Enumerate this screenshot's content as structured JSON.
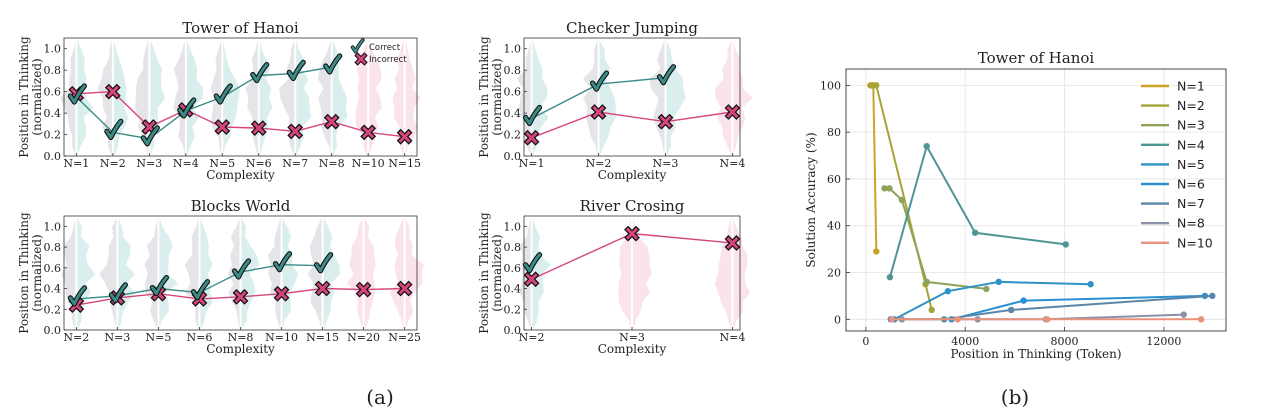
{
  "colors": {
    "correct": "#3b8c88",
    "incorrect": "#d6467e",
    "correct_fill": "#9fd3cf",
    "incorrect_fill": "#f4b6cc",
    "gray_fill": "#b9b9c4"
  },
  "figure": {
    "caption_a": "(a)",
    "caption_b": "(b)"
  },
  "panel_a": {
    "legend": {
      "correct": "Correct",
      "incorrect": "Incorrect"
    },
    "yticks": [
      "0.0",
      "0.2",
      "0.4",
      "0.6",
      "0.8",
      "1.0"
    ]
  },
  "chart_data": [
    {
      "type": "line",
      "title": "Tower of Hanoi",
      "xlabel": "Complexity",
      "ylabel": "Position in Thinking (normalized)",
      "ylim": [
        0,
        1.1
      ],
      "categories": [
        "N=1",
        "N=2",
        "N=3",
        "N=4",
        "N=5",
        "N=6",
        "N=7",
        "N=8",
        "N=10",
        "N=15"
      ],
      "series": [
        {
          "name": "Correct",
          "values": [
            0.55,
            0.22,
            0.16,
            0.42,
            0.55,
            0.75,
            0.77,
            0.83,
            null,
            null
          ]
        },
        {
          "name": "Incorrect",
          "values": [
            0.58,
            0.6,
            0.27,
            0.43,
            0.27,
            0.26,
            0.23,
            0.32,
            0.22,
            0.18
          ]
        }
      ],
      "legend": "top-right"
    },
    {
      "type": "line",
      "title": "Checker Jumping",
      "xlabel": "Complexity",
      "ylabel": "Position in Thinking (normalized)",
      "ylim": [
        0,
        1.1
      ],
      "categories": [
        "N=1",
        "N=2",
        "N=3",
        "N=4"
      ],
      "series": [
        {
          "name": "Correct",
          "values": [
            0.35,
            0.67,
            0.73,
            null
          ]
        },
        {
          "name": "Incorrect",
          "values": [
            0.17,
            0.41,
            0.32,
            0.41
          ]
        }
      ]
    },
    {
      "type": "line",
      "title": "Blocks World",
      "xlabel": "Complexity",
      "ylabel": "Position in Thinking (normalized)",
      "ylim": [
        0,
        1.1
      ],
      "categories": [
        "N=2",
        "N=3",
        "N=5",
        "N=6",
        "N=8",
        "N=10",
        "N=15",
        "N=20",
        "N=25"
      ],
      "series": [
        {
          "name": "Correct",
          "values": [
            0.3,
            0.33,
            0.4,
            0.36,
            0.56,
            0.63,
            0.62,
            null,
            null
          ]
        },
        {
          "name": "Incorrect",
          "values": [
            0.24,
            0.31,
            0.35,
            0.3,
            0.32,
            0.35,
            0.4,
            0.39,
            0.4
          ]
        }
      ]
    },
    {
      "type": "line",
      "title": "River Crosing",
      "xlabel": "Complexity",
      "ylabel": "Position in Thinking (normalized)",
      "ylim": [
        0,
        1.1
      ],
      "categories": [
        "N=2",
        "N=3",
        "N=4"
      ],
      "series": [
        {
          "name": "Correct",
          "values": [
            0.62,
            null,
            null
          ]
        },
        {
          "name": "Incorrect",
          "values": [
            0.49,
            0.93,
            0.84
          ]
        }
      ]
    },
    {
      "type": "line",
      "title": "Tower of Hanoi",
      "xlabel": "Position in Thinking (Token)",
      "ylabel": "Solution Accuracy (%)",
      "xlim": [
        -800,
        14500
      ],
      "ylim": [
        -5,
        107
      ],
      "xticks": [
        0,
        4000,
        8000,
        12000
      ],
      "yticks": [
        0,
        20,
        40,
        60,
        80,
        100
      ],
      "grid": true,
      "legend": "right",
      "series": [
        {
          "name": "N=1",
          "color": "#c9a227",
          "points": [
            [
              180,
              100
            ],
            [
              300,
              100
            ],
            [
              420,
              29
            ]
          ]
        },
        {
          "name": "N=2",
          "color": "#a7a437",
          "points": [
            [
              230,
              100
            ],
            [
              420,
              100
            ],
            [
              2400,
              15
            ],
            [
              2650,
              4
            ]
          ]
        },
        {
          "name": "N=3",
          "color": "#8ea35a",
          "points": [
            [
              750,
              56
            ],
            [
              950,
              56
            ],
            [
              1450,
              51
            ],
            [
              2450,
              16
            ],
            [
              4850,
              13
            ]
          ]
        },
        {
          "name": "N=4",
          "color": "#4f9593",
          "points": [
            [
              970,
              18
            ],
            [
              2450,
              74
            ],
            [
              4400,
              37
            ],
            [
              8050,
              32
            ]
          ]
        },
        {
          "name": "N=5",
          "color": "#2f93c5",
          "points": [
            [
              1150,
              0
            ],
            [
              3300,
              12
            ],
            [
              5350,
              16
            ],
            [
              9050,
              15
            ]
          ]
        },
        {
          "name": "N=6",
          "color": "#2a8fd0",
          "points": [
            [
              3450,
              0
            ],
            [
              6350,
              8
            ],
            [
              13650,
              10
            ]
          ]
        },
        {
          "name": "N=7",
          "color": "#5a86a8",
          "points": [
            [
              1000,
              0
            ],
            [
              3150,
              0
            ],
            [
              5850,
              4
            ],
            [
              13950,
              10
            ]
          ]
        },
        {
          "name": "N=8",
          "color": "#8b92a8",
          "points": [
            [
              1450,
              0
            ],
            [
              4500,
              0
            ],
            [
              7250,
              0
            ],
            [
              12800,
              2
            ]
          ]
        },
        {
          "name": "N=10",
          "color": "#e8927c",
          "points": [
            [
              1050,
              0
            ],
            [
              3700,
              0
            ],
            [
              7300,
              0
            ],
            [
              13500,
              0
            ]
          ]
        }
      ]
    }
  ]
}
